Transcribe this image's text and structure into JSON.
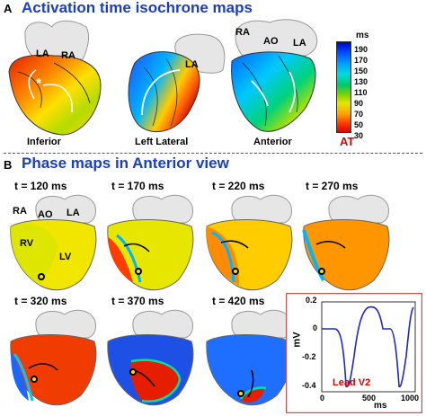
{
  "panel_a": {
    "letter": "A",
    "title": "Activation time isochrone maps",
    "views": [
      "Inferior",
      "Left Lateral",
      "Anterior"
    ],
    "chamber_labels": {
      "inferior": [
        "LA",
        "RA"
      ],
      "left_lateral": [
        "LA"
      ],
      "anterior": [
        "RA",
        "AO",
        "LA"
      ]
    },
    "legend": {
      "unit": "ms",
      "label": "AT",
      "ticks": [
        "190",
        "170",
        "150",
        "130",
        "110",
        "90",
        "70",
        "50",
        "30"
      ]
    }
  },
  "panel_b": {
    "letter": "B",
    "title": "Phase maps in Anterior view",
    "times": [
      "t = 120 ms",
      "t = 170 ms",
      "t = 220 ms",
      "t = 270 ms",
      "t = 320 ms",
      "t = 370 ms",
      "t = 420 ms"
    ],
    "first_heart_labels": [
      "RA",
      "AO",
      "LA",
      "RV",
      "LV"
    ]
  },
  "ecg_inset": {
    "lead": "Lead V2",
    "ylabel": "mV",
    "xlabel": "ms",
    "yticks": [
      "0.2",
      "0",
      "-0.2",
      "-0.4"
    ],
    "xticks": [
      "0",
      "500",
      "1000"
    ]
  }
}
